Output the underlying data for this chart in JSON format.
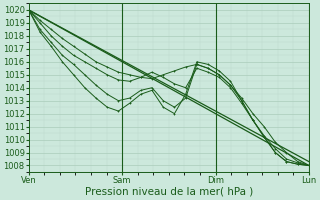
{
  "bg_color": "#cce8dc",
  "grid_major_color": "#aaccba",
  "grid_minor_color": "#bcd8cc",
  "line_color": "#1a5c1a",
  "xlabel": "Pression niveau de la mer( hPa )",
  "xtick_labels": [
    "Ven",
    "Sam",
    "Dim",
    "Lun"
  ],
  "xtick_pos": [
    0,
    1,
    2,
    3
  ],
  "ylim": [
    1007.5,
    1020.5
  ],
  "xlim": [
    0,
    3
  ],
  "yticks": [
    1008,
    1009,
    1010,
    1011,
    1012,
    1013,
    1014,
    1015,
    1016,
    1017,
    1018,
    1019,
    1020
  ],
  "xlabel_fontsize": 7.5,
  "tick_fontsize": 6,
  "straight_lines": [
    [
      [
        0,
        3
      ],
      [
        1020.0,
        1008.0
      ]
    ],
    [
      [
        0,
        3
      ],
      [
        1020.0,
        1008.3
      ]
    ]
  ],
  "wiggly_lines": [
    [
      1020.0,
      1019.2,
      1018.5,
      1017.8,
      1017.2,
      1016.6,
      1016.0,
      1015.6,
      1015.2,
      1015.0,
      1014.8,
      1014.7,
      1015.0,
      1015.3,
      1015.6,
      1015.8,
      1015.5,
      1015.0,
      1014.2,
      1013.2,
      1012.0,
      1011.0,
      1009.8,
      1009.0,
      1008.3,
      1008.0
    ],
    [
      1020.0,
      1019.0,
      1018.0,
      1017.2,
      1016.5,
      1016.0,
      1015.5,
      1015.0,
      1014.6,
      1014.5,
      1014.8,
      1015.2,
      1014.8,
      1014.3,
      1014.0,
      1015.5,
      1015.2,
      1014.8,
      1014.0,
      1012.8,
      1011.5,
      1010.3,
      1009.3,
      1008.5,
      1008.2,
      1008.0
    ],
    [
      1020.0,
      1018.5,
      1017.5,
      1016.5,
      1015.8,
      1015.0,
      1014.2,
      1013.5,
      1013.0,
      1013.2,
      1013.8,
      1014.0,
      1013.0,
      1012.5,
      1013.2,
      1015.8,
      1015.5,
      1015.0,
      1014.2,
      1013.0,
      1011.5,
      1010.2,
      1009.0,
      1008.3,
      1008.1,
      1008.0
    ],
    [
      1020.0,
      1018.3,
      1017.2,
      1016.0,
      1015.0,
      1014.0,
      1013.2,
      1012.5,
      1012.2,
      1012.8,
      1013.5,
      1013.8,
      1012.5,
      1012.0,
      1013.5,
      1016.0,
      1015.8,
      1015.3,
      1014.5,
      1013.0,
      1011.5,
      1010.2,
      1009.0,
      1008.3,
      1008.1,
      1008.0
    ]
  ]
}
